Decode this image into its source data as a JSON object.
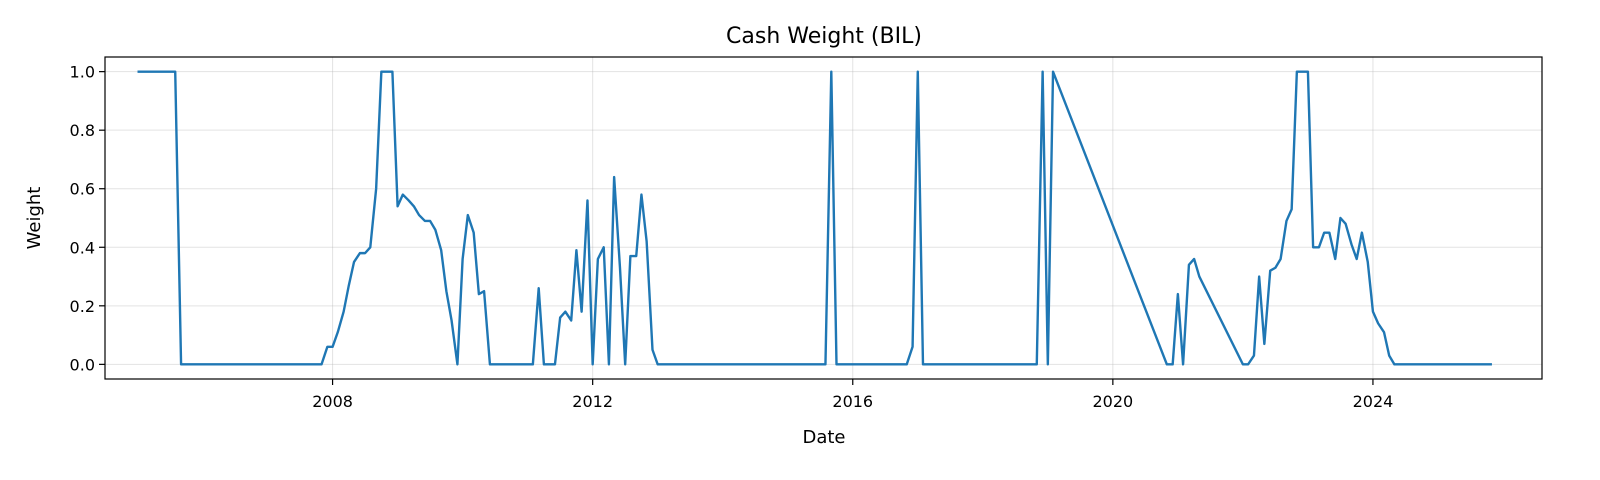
{
  "chart_data": {
    "type": "line",
    "title": "Cash Weight (BIL)",
    "xlabel": "Date",
    "ylabel": "Weight",
    "grid": true,
    "legend": "none",
    "color": "#1f77b4",
    "xlim": [
      2004.5,
      2026.6
    ],
    "ylim": [
      -0.05,
      1.05
    ],
    "xticks": [
      2008,
      2012,
      2016,
      2020,
      2024
    ],
    "xtick_labels": [
      "2008",
      "2012",
      "2016",
      "2020",
      "2024"
    ],
    "yticks": [
      0.0,
      0.2,
      0.4,
      0.6,
      0.8,
      1.0
    ],
    "ytick_labels": [
      "0.0",
      "0.2",
      "0.4",
      "0.6",
      "0.8",
      "1.0"
    ],
    "series": [
      {
        "x": [
          2005.0,
          2005.42,
          2005.58,
          2005.67,
          2007.83,
          2007.92,
          2008.0,
          2008.08,
          2008.17,
          2008.25,
          2008.33,
          2008.42,
          2008.5,
          2008.58,
          2008.67,
          2008.75,
          2008.83,
          2008.92,
          2009.0,
          2009.08,
          2009.17,
          2009.25,
          2009.33,
          2009.42,
          2009.5,
          2009.58,
          2009.67,
          2009.75,
          2009.83,
          2009.92,
          2010.0,
          2010.08,
          2010.17,
          2010.25,
          2010.33,
          2010.42,
          2010.5,
          2010.58,
          2011.08,
          2011.17,
          2011.25,
          2011.42,
          2011.5,
          2011.58,
          2011.67,
          2011.75,
          2011.83,
          2011.92,
          2012.0,
          2012.08,
          2012.17,
          2012.25,
          2012.33,
          2012.42,
          2012.5,
          2012.58,
          2012.67,
          2012.75,
          2012.83,
          2012.92,
          2013.0,
          2015.58,
          2015.67,
          2015.75,
          2016.83,
          2016.92,
          2017.0,
          2017.08,
          2018.83,
          2018.92,
          2019.0,
          2019.08,
          2020.83,
          2020.92,
          2021.0,
          2021.08,
          2021.17,
          2021.25,
          2021.33,
          2022.0,
          2022.08,
          2022.17,
          2022.25,
          2022.33,
          2022.42,
          2022.5,
          2022.58,
          2022.67,
          2022.75,
          2022.83,
          2023.0,
          2023.08,
          2023.17,
          2023.25,
          2023.33,
          2023.42,
          2023.5,
          2023.58,
          2023.67,
          2023.75,
          2023.83,
          2023.92,
          2024.0,
          2024.08,
          2024.17,
          2024.25,
          2024.33,
          2025.83
        ],
        "y": [
          1.0,
          1.0,
          1.0,
          0.0,
          0.0,
          0.06,
          0.06,
          0.11,
          0.18,
          0.27,
          0.35,
          0.38,
          0.38,
          0.4,
          0.6,
          1.0,
          1.0,
          1.0,
          0.54,
          0.58,
          0.56,
          0.54,
          0.51,
          0.49,
          0.49,
          0.46,
          0.39,
          0.25,
          0.15,
          0.0,
          0.36,
          0.51,
          0.45,
          0.24,
          0.25,
          0.0,
          0.0,
          0.0,
          0.0,
          0.26,
          0.0,
          0.0,
          0.16,
          0.18,
          0.15,
          0.39,
          0.18,
          0.56,
          0.0,
          0.36,
          0.4,
          0.0,
          0.64,
          0.33,
          0.0,
          0.37,
          0.37,
          0.58,
          0.42,
          0.05,
          0.0,
          0.0,
          1.0,
          0.0,
          0.0,
          0.06,
          1.0,
          0.0,
          0.0,
          1.0,
          0.0,
          1.0,
          0.0,
          0.0,
          0.24,
          0.0,
          0.34,
          0.36,
          0.3,
          0.0,
          0.0,
          0.03,
          0.3,
          0.07,
          0.32,
          0.33,
          0.36,
          0.49,
          0.53,
          1.0,
          1.0,
          0.4,
          0.4,
          0.45,
          0.45,
          0.36,
          0.5,
          0.48,
          0.41,
          0.36,
          0.45,
          0.35,
          0.18,
          0.14,
          0.11,
          0.03,
          0.0,
          0.0
        ]
      }
    ]
  }
}
